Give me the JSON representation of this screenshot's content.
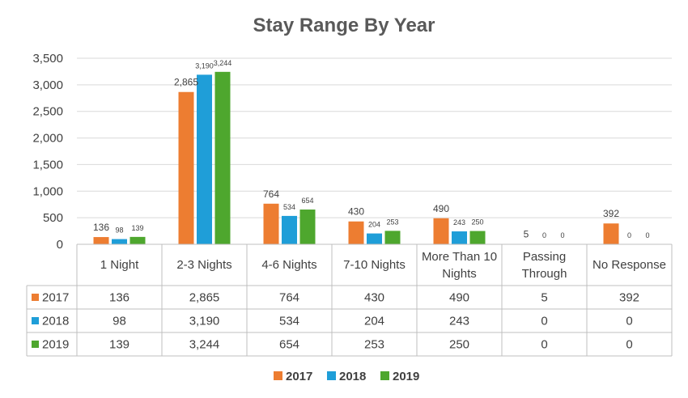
{
  "chart_data": {
    "type": "bar",
    "title": "Stay Range By Year",
    "categories": [
      "1 Night",
      "2-3 Nights",
      "4-6 Nights",
      "7-10 Nights",
      "More Than 10 Nights",
      "Passing Through",
      "No Response"
    ],
    "series": [
      {
        "name": "2017",
        "color": "#ED7D31",
        "values": [
          136,
          2865,
          764,
          430,
          490,
          5,
          392
        ],
        "labels": [
          "136",
          "2,865",
          "764",
          "430",
          "490",
          "5",
          "392"
        ]
      },
      {
        "name": "2018",
        "color": "#1F9ED8",
        "values": [
          98,
          3190,
          534,
          204,
          243,
          0,
          0
        ],
        "labels": [
          "98",
          "3,190",
          "534",
          "204",
          "243",
          "0",
          "0"
        ]
      },
      {
        "name": "2019",
        "color": "#4EA72E",
        "values": [
          139,
          3244,
          654,
          253,
          250,
          0,
          0
        ],
        "labels": [
          "139",
          "3,244",
          "654",
          "253",
          "250",
          "0",
          "0"
        ]
      }
    ],
    "ylim": [
      0,
      3500
    ],
    "yticks": [
      "0",
      "500",
      "1,000",
      "1,500",
      "2,000",
      "2,500",
      "3,000",
      "3,500"
    ],
    "grid": true,
    "legend_position": "bottom",
    "data_table": true
  }
}
